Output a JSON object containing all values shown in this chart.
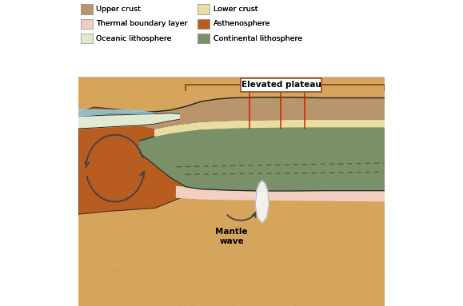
{
  "colors": {
    "upper_crust": "#b8956a",
    "lower_crust": "#e8dea0",
    "thermal_boundary": "#f2cfc0",
    "asthenosphere": "#b85c20",
    "oceanic_litho": "#e0ead0",
    "continental_litho": "#7a9068",
    "mantle_sandy": "#d4a55a",
    "mantle_deep": "#c89040",
    "water": "#90cce0",
    "white_plume": "#f5f5f5",
    "background": "#e8e0d0",
    "outline": "#222222",
    "dashed_line": "#4a6040",
    "fault_line": "#cc2200",
    "bracket_color": "#8B4020",
    "arrow_color": "#444444"
  },
  "legend": [
    {
      "label": "Upper crust",
      "color": "#b8956a",
      "row": 0,
      "col": 0
    },
    {
      "label": "Lower crust",
      "color": "#e8dea0",
      "row": 0,
      "col": 1
    },
    {
      "label": "Thermal boundary layer",
      "color": "#f2cfc0",
      "row": 1,
      "col": 0
    },
    {
      "label": "Asthenosphere",
      "color": "#b85c20",
      "row": 1,
      "col": 1
    },
    {
      "label": "Oceanic lithosphere",
      "color": "#e0ead0",
      "row": 2,
      "col": 0
    },
    {
      "label": "Continental lithosphere",
      "color": "#7a9068",
      "row": 2,
      "col": 1
    }
  ],
  "elevated_plateau_label": "Elevated plateau",
  "mantle_wave_label": "Mantle\nwave"
}
